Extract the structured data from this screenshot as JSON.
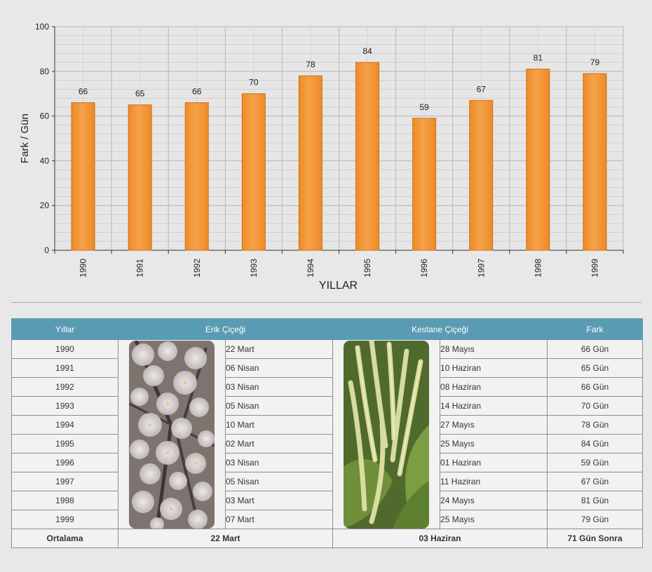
{
  "chart_data": {
    "type": "bar",
    "categories": [
      "1990",
      "1991",
      "1992",
      "1993",
      "1994",
      "1995",
      "1996",
      "1997",
      "1998",
      "1999"
    ],
    "values": [
      66,
      65,
      66,
      70,
      78,
      84,
      59,
      67,
      81,
      79
    ],
    "xlabel": "YILLAR",
    "ylabel": "Fark / Gün",
    "ylim": [
      0,
      100
    ],
    "yticks": [
      0,
      20,
      40,
      60,
      80,
      100
    ],
    "grid": true,
    "bar_color": "#f5a24a"
  },
  "table": {
    "headers": {
      "years": "Yıllar",
      "erik": "Erik Çiçeği",
      "kestane": "Kestane Çiçeği",
      "fark": "Fark"
    },
    "rows": [
      {
        "year": "1990",
        "erik": "22 Mart",
        "kestane": "28 Mayıs",
        "fark": "66 Gün"
      },
      {
        "year": "1991",
        "erik": "06 Nisan",
        "kestane": "10 Haziran",
        "fark": "65 Gün"
      },
      {
        "year": "1992",
        "erik": "03 Nisan",
        "kestane": "08 Haziran",
        "fark": "66 Gün"
      },
      {
        "year": "1993",
        "erik": "05 Nisan",
        "kestane": "14 Haziran",
        "fark": "70 Gün"
      },
      {
        "year": "1994",
        "erik": "10 Mart",
        "kestane": "27 Mayıs",
        "fark": "78 Gün"
      },
      {
        "year": "1995",
        "erik": "02 Mart",
        "kestane": "25 Mayıs",
        "fark": "84 Gün"
      },
      {
        "year": "1996",
        "erik": "03 Nisan",
        "kestane": "01 Haziran",
        "fark": "59 Gün"
      },
      {
        "year": "1997",
        "erik": "05 Nisan",
        "kestane": "11 Haziran",
        "fark": "67 Gün"
      },
      {
        "year": "1998",
        "erik": "03 Mart",
        "kestane": "24 Mayıs",
        "fark": "81 Gün"
      },
      {
        "year": "1999",
        "erik": "07 Mart",
        "kestane": "25 Mayıs",
        "fark": "79 Gün"
      }
    ],
    "average": {
      "label": "Ortalama",
      "erik": "22 Mart",
      "kestane": "03 Haziran",
      "fark": "71 Gün Sonra"
    }
  }
}
